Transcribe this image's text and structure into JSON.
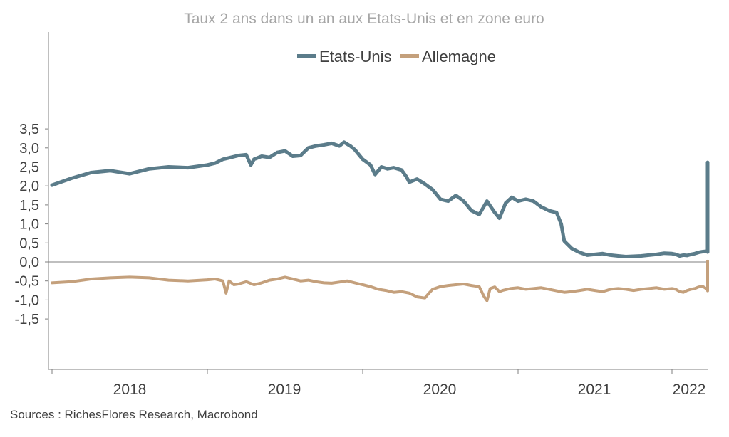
{
  "chart_data": {
    "type": "line",
    "title": "Taux 2 ans dans un an aux Etats-Unis et en zone euro",
    "xlabel": "",
    "ylabel": "",
    "xlim": [
      2017.6,
      2022.2
    ],
    "ylim": [
      -1.75,
      3.75
    ],
    "y_ticks": [
      3.5,
      3.0,
      2.5,
      2.0,
      1.5,
      1.0,
      0.5,
      0.0,
      -0.5,
      -1.0,
      -1.5
    ],
    "y_tick_labels": [
      "3,5",
      "3,0",
      "2,5",
      "2,0",
      "1,5",
      "1,0",
      "0,5",
      "0,0",
      "-0,5",
      "-1,0",
      "-1,5"
    ],
    "x_year_boundaries": [
      2017.6,
      2018.0,
      2019.0,
      2020.0,
      2021.0,
      2022.0
    ],
    "x_tick_labels": [
      {
        "label": "2018",
        "at": 2017.5
      },
      {
        "label": "2019",
        "at": 2018.5
      },
      {
        "label": "2020",
        "at": 2019.5
      },
      {
        "label": "2021",
        "at": 2020.5
      },
      {
        "label": "2022",
        "at": 2021.4
      }
    ],
    "legend_position": "top-center",
    "grid": false,
    "series": [
      {
        "name": "Etats-Unis",
        "color": "#5b7c8a",
        "points": [
          [
            2017.6,
            2.02
          ],
          [
            2017.65,
            2.2
          ],
          [
            2017.7,
            2.35
          ],
          [
            2017.75,
            2.4
          ],
          [
            2017.8,
            2.32
          ],
          [
            2017.85,
            2.45
          ],
          [
            2017.9,
            2.5
          ],
          [
            2017.95,
            2.48
          ],
          [
            2018.0,
            2.55
          ],
          [
            2018.05,
            2.6
          ],
          [
            2018.1,
            2.7
          ],
          [
            2018.15,
            2.75
          ],
          [
            2018.2,
            2.8
          ],
          [
            2018.25,
            2.82
          ],
          [
            2018.28,
            2.55
          ],
          [
            2018.3,
            2.7
          ],
          [
            2018.35,
            2.78
          ],
          [
            2018.4,
            2.75
          ],
          [
            2018.45,
            2.88
          ],
          [
            2018.5,
            2.92
          ],
          [
            2018.55,
            2.78
          ],
          [
            2018.6,
            2.8
          ],
          [
            2018.65,
            3.0
          ],
          [
            2018.7,
            3.05
          ],
          [
            2018.75,
            3.08
          ],
          [
            2018.8,
            3.12
          ],
          [
            2018.85,
            3.05
          ],
          [
            2018.88,
            3.15
          ],
          [
            2018.92,
            3.05
          ],
          [
            2018.95,
            2.95
          ],
          [
            2019.0,
            2.7
          ],
          [
            2019.05,
            2.55
          ],
          [
            2019.08,
            2.3
          ],
          [
            2019.12,
            2.5
          ],
          [
            2019.16,
            2.45
          ],
          [
            2019.2,
            2.48
          ],
          [
            2019.25,
            2.42
          ],
          [
            2019.28,
            2.25
          ],
          [
            2019.3,
            2.1
          ],
          [
            2019.35,
            2.18
          ],
          [
            2019.4,
            2.05
          ],
          [
            2019.45,
            1.9
          ],
          [
            2019.5,
            1.65
          ],
          [
            2019.55,
            1.6
          ],
          [
            2019.6,
            1.75
          ],
          [
            2019.65,
            1.6
          ],
          [
            2019.7,
            1.35
          ],
          [
            2019.75,
            1.25
          ],
          [
            2019.8,
            1.6
          ],
          [
            2019.85,
            1.3
          ],
          [
            2019.88,
            1.15
          ],
          [
            2019.92,
            1.55
          ],
          [
            2019.96,
            1.7
          ],
          [
            2020.0,
            1.6
          ],
          [
            2020.05,
            1.65
          ],
          [
            2020.1,
            1.6
          ],
          [
            2020.15,
            1.45
          ],
          [
            2020.2,
            1.35
          ],
          [
            2020.25,
            1.3
          ],
          [
            2020.28,
            1.0
          ],
          [
            2020.3,
            0.55
          ],
          [
            2020.35,
            0.35
          ],
          [
            2020.4,
            0.25
          ],
          [
            2020.45,
            0.18
          ],
          [
            2020.5,
            0.2
          ],
          [
            2020.55,
            0.22
          ],
          [
            2020.6,
            0.18
          ],
          [
            2020.65,
            0.16
          ],
          [
            2020.7,
            0.14
          ],
          [
            2020.75,
            0.15
          ],
          [
            2020.8,
            0.16
          ],
          [
            2020.85,
            0.18
          ],
          [
            2020.9,
            0.2
          ],
          [
            2020.95,
            0.23
          ],
          [
            2021.0,
            0.22
          ],
          [
            2021.05,
            0.2
          ],
          [
            2021.1,
            0.16
          ],
          [
            2021.15,
            0.18
          ],
          [
            2021.2,
            0.17
          ],
          [
            2021.25,
            0.2
          ],
          [
            2021.3,
            0.22
          ],
          [
            2021.35,
            0.25
          ],
          [
            2021.4,
            0.27
          ],
          [
            2021.45,
            0.28
          ],
          [
            2021.5,
            0.28
          ],
          [
            2021.55,
            0.26
          ],
          [
            2021.58,
            0.42
          ],
          [
            2021.62,
            0.38
          ],
          [
            2021.65,
            0.32
          ],
          [
            2021.7,
            0.3
          ],
          [
            2021.75,
            0.32
          ],
          [
            2021.78,
            0.4
          ],
          [
            2021.8,
            0.35
          ],
          [
            2021.85,
            0.38
          ],
          [
            2021.88,
            0.45
          ],
          [
            2021.92,
            0.55
          ],
          [
            2021.95,
            0.7
          ],
          [
            2021.98,
            0.8
          ],
          [
            2022.0,
            0.75
          ],
          [
            2022.05,
            0.95
          ],
          [
            2022.1,
            1.05
          ],
          [
            2022.15,
            1.15
          ],
          [
            2022.2,
            1.25
          ],
          [
            2022.25,
            1.5
          ],
          [
            2022.28,
            1.55
          ],
          [
            2022.3,
            2.0
          ],
          [
            2022.32,
            1.85
          ],
          [
            2022.35,
            1.95
          ],
          [
            2022.38,
            1.75
          ],
          [
            2022.4,
            2.05
          ],
          [
            2022.42,
            2.3
          ],
          [
            2022.44,
            2.5
          ],
          [
            2022.45,
            2.62
          ]
        ]
      },
      {
        "name": "Allemagne",
        "color": "#c4a07c",
        "points": [
          [
            2017.6,
            -0.55
          ],
          [
            2017.65,
            -0.52
          ],
          [
            2017.7,
            -0.45
          ],
          [
            2017.75,
            -0.42
          ],
          [
            2017.8,
            -0.4
          ],
          [
            2017.85,
            -0.42
          ],
          [
            2017.9,
            -0.48
          ],
          [
            2017.95,
            -0.5
          ],
          [
            2018.0,
            -0.47
          ],
          [
            2018.05,
            -0.45
          ],
          [
            2018.1,
            -0.5
          ],
          [
            2018.12,
            -0.82
          ],
          [
            2018.14,
            -0.5
          ],
          [
            2018.17,
            -0.6
          ],
          [
            2018.2,
            -0.58
          ],
          [
            2018.25,
            -0.52
          ],
          [
            2018.3,
            -0.6
          ],
          [
            2018.35,
            -0.55
          ],
          [
            2018.4,
            -0.48
          ],
          [
            2018.45,
            -0.45
          ],
          [
            2018.5,
            -0.4
          ],
          [
            2018.55,
            -0.45
          ],
          [
            2018.6,
            -0.5
          ],
          [
            2018.65,
            -0.48
          ],
          [
            2018.7,
            -0.52
          ],
          [
            2018.75,
            -0.55
          ],
          [
            2018.8,
            -0.56
          ],
          [
            2018.85,
            -0.53
          ],
          [
            2018.9,
            -0.5
          ],
          [
            2018.95,
            -0.55
          ],
          [
            2019.0,
            -0.6
          ],
          [
            2019.05,
            -0.65
          ],
          [
            2019.1,
            -0.72
          ],
          [
            2019.15,
            -0.75
          ],
          [
            2019.2,
            -0.8
          ],
          [
            2019.25,
            -0.78
          ],
          [
            2019.3,
            -0.82
          ],
          [
            2019.35,
            -0.92
          ],
          [
            2019.4,
            -0.95
          ],
          [
            2019.42,
            -0.85
          ],
          [
            2019.45,
            -0.72
          ],
          [
            2019.5,
            -0.65
          ],
          [
            2019.55,
            -0.62
          ],
          [
            2019.6,
            -0.6
          ],
          [
            2019.65,
            -0.58
          ],
          [
            2019.7,
            -0.62
          ],
          [
            2019.75,
            -0.65
          ],
          [
            2019.78,
            -0.9
          ],
          [
            2019.8,
            -1.02
          ],
          [
            2019.82,
            -0.7
          ],
          [
            2019.85,
            -0.66
          ],
          [
            2019.88,
            -0.78
          ],
          [
            2019.9,
            -0.75
          ],
          [
            2019.95,
            -0.7
          ],
          [
            2020.0,
            -0.68
          ],
          [
            2020.05,
            -0.72
          ],
          [
            2020.1,
            -0.7
          ],
          [
            2020.15,
            -0.68
          ],
          [
            2020.2,
            -0.72
          ],
          [
            2020.25,
            -0.76
          ],
          [
            2020.3,
            -0.8
          ],
          [
            2020.35,
            -0.78
          ],
          [
            2020.4,
            -0.75
          ],
          [
            2020.45,
            -0.72
          ],
          [
            2020.5,
            -0.75
          ],
          [
            2020.55,
            -0.78
          ],
          [
            2020.6,
            -0.72
          ],
          [
            2020.65,
            -0.7
          ],
          [
            2020.7,
            -0.72
          ],
          [
            2020.75,
            -0.75
          ],
          [
            2020.8,
            -0.72
          ],
          [
            2020.85,
            -0.7
          ],
          [
            2020.9,
            -0.68
          ],
          [
            2020.95,
            -0.72
          ],
          [
            2021.0,
            -0.7
          ],
          [
            2021.05,
            -0.72
          ],
          [
            2021.1,
            -0.78
          ],
          [
            2021.15,
            -0.8
          ],
          [
            2021.2,
            -0.75
          ],
          [
            2021.25,
            -0.72
          ],
          [
            2021.3,
            -0.7
          ],
          [
            2021.35,
            -0.66
          ],
          [
            2021.4,
            -0.64
          ],
          [
            2021.45,
            -0.7
          ],
          [
            2021.5,
            -0.68
          ],
          [
            2021.55,
            -0.64
          ],
          [
            2021.58,
            -0.56
          ],
          [
            2021.6,
            -0.6
          ],
          [
            2021.65,
            -0.7
          ],
          [
            2021.7,
            -0.65
          ],
          [
            2021.75,
            -0.62
          ],
          [
            2021.78,
            -0.52
          ],
          [
            2021.8,
            -0.6
          ],
          [
            2021.82,
            0.02
          ],
          [
            2021.84,
            -0.3
          ],
          [
            2021.86,
            -0.35
          ],
          [
            2021.88,
            -0.5
          ],
          [
            2021.9,
            -0.76
          ],
          [
            2021.92,
            -0.3
          ],
          [
            2021.95,
            -0.12
          ],
          [
            2021.97,
            -0.08
          ]
        ]
      }
    ]
  },
  "legend": {
    "items": [
      {
        "label": "Etats-Unis",
        "color": "#5b7c8a"
      },
      {
        "label": "Allemagne",
        "color": "#c4a07c"
      }
    ]
  },
  "footer": {
    "source": "Sources : RichesFlores Research, Macrobond"
  }
}
